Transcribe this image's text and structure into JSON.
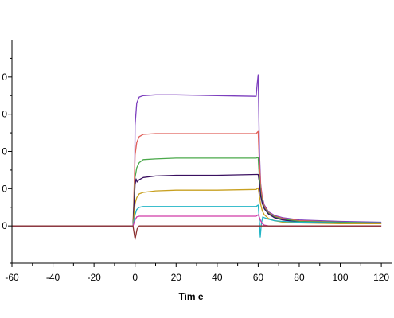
{
  "chart_data": {
    "type": "line",
    "xlabel": "Tim e",
    "xlim": [
      -60,
      125
    ],
    "ylim": [
      -5,
      25
    ],
    "x_ticks": [
      "-60",
      "-40",
      "-20",
      "0",
      "20",
      "40",
      "60",
      "80",
      "100",
      "120"
    ],
    "y_tick_labels": [
      "0",
      "0",
      "0",
      "0",
      "0"
    ],
    "grid": false,
    "series": [
      {
        "color": "#7d3fbe",
        "x": [
          -60,
          -1,
          -0.3,
          0,
          0.8,
          2,
          4,
          10,
          20,
          40,
          59,
          59.5,
          60,
          60.6,
          61.2,
          62,
          63,
          65,
          68,
          72,
          80,
          100,
          120
        ],
        "y": [
          0,
          0,
          1.2,
          13.5,
          16.5,
          17.3,
          17.5,
          17.6,
          17.6,
          17.5,
          17.4,
          19.0,
          20.3,
          9.8,
          5.6,
          3.8,
          2.8,
          1.9,
          1.4,
          1.1,
          0.8,
          0.6,
          0.5
        ]
      },
      {
        "color": "#e0605a",
        "x": [
          -1,
          0,
          0.8,
          2,
          4,
          10,
          20,
          40,
          59,
          60,
          60.5,
          61.2,
          62,
          63,
          65,
          68,
          72,
          80,
          100,
          120
        ],
        "y": [
          0,
          9.5,
          11.2,
          12.0,
          12.3,
          12.4,
          12.4,
          12.4,
          12.4,
          12.7,
          9.0,
          5.4,
          3.6,
          2.6,
          1.8,
          1.3,
          1.0,
          0.7,
          0.5,
          0.4
        ]
      },
      {
        "color": "#4aa84a",
        "x": [
          -1,
          0,
          0.8,
          2,
          4,
          10,
          20,
          40,
          59,
          60,
          60.5,
          61.2,
          62,
          63,
          65,
          68,
          72,
          80,
          100,
          120
        ],
        "y": [
          0,
          6.5,
          7.8,
          8.5,
          8.9,
          9.0,
          9.1,
          9.1,
          9.1,
          9.2,
          6.8,
          4.4,
          3.2,
          2.4,
          1.7,
          1.2,
          0.9,
          0.6,
          0.5,
          0.4
        ]
      },
      {
        "color": "#3a1060",
        "x": [
          -1,
          0,
          0.5,
          1,
          2,
          4,
          10,
          20,
          40,
          59,
          60,
          60.5,
          61.2,
          62,
          63,
          65,
          68,
          72,
          80,
          100,
          120
        ],
        "y": [
          0,
          5.5,
          6.3,
          5.9,
          6.2,
          6.5,
          6.7,
          6.8,
          6.8,
          6.9,
          6.9,
          6.0,
          4.0,
          3.0,
          2.3,
          1.6,
          1.1,
          0.8,
          0.5,
          0.4,
          0.3
        ]
      },
      {
        "color": "#c8a020",
        "x": [
          -1,
          0,
          0.8,
          2,
          4,
          10,
          20,
          40,
          59,
          60,
          60.5,
          61.2,
          62,
          63,
          65,
          68,
          72,
          80,
          100,
          120
        ],
        "y": [
          0,
          3.0,
          3.8,
          4.3,
          4.5,
          4.7,
          4.8,
          4.8,
          4.9,
          5.1,
          4.2,
          2.9,
          2.0,
          1.5,
          1.0,
          0.7,
          0.5,
          0.4,
          0.3,
          0.3
        ]
      },
      {
        "color": "#22b5c6",
        "x": [
          -1,
          0,
          0.8,
          2,
          4,
          10,
          20,
          40,
          59,
          60,
          60.5,
          61,
          61.5,
          62.2,
          63,
          65,
          68,
          72,
          80,
          100,
          120
        ],
        "y": [
          0,
          1.5,
          2.2,
          2.5,
          2.6,
          2.6,
          2.6,
          2.6,
          2.6,
          2.8,
          1.0,
          -1.5,
          0.2,
          1.2,
          1.1,
          0.9,
          0.7,
          0.6,
          0.5,
          0.4,
          0.4
        ]
      },
      {
        "color": "#d03aa8",
        "x": [
          -1,
          0,
          0.8,
          2,
          4,
          10,
          20,
          40,
          59,
          60,
          60.5,
          61.2,
          62,
          63,
          65,
          70,
          80,
          100,
          120
        ],
        "y": [
          0,
          0.8,
          1.2,
          1.3,
          1.3,
          1.3,
          1.3,
          1.3,
          1.3,
          1.5,
          1.2,
          0.7,
          0.3,
          0.1,
          0.0,
          0.0,
          0.0,
          0.0,
          0.0
        ]
      },
      {
        "color": "#8a3030",
        "x": [
          -60,
          -1,
          0,
          1,
          2,
          4,
          10,
          20,
          40,
          59,
          60,
          61,
          62,
          70,
          100,
          120
        ],
        "y": [
          0,
          0,
          -1.8,
          -0.4,
          0.0,
          0.0,
          0.0,
          0.0,
          0.0,
          0.0,
          0.0,
          0.0,
          0.0,
          0.0,
          0.0,
          0.0
        ]
      }
    ]
  }
}
